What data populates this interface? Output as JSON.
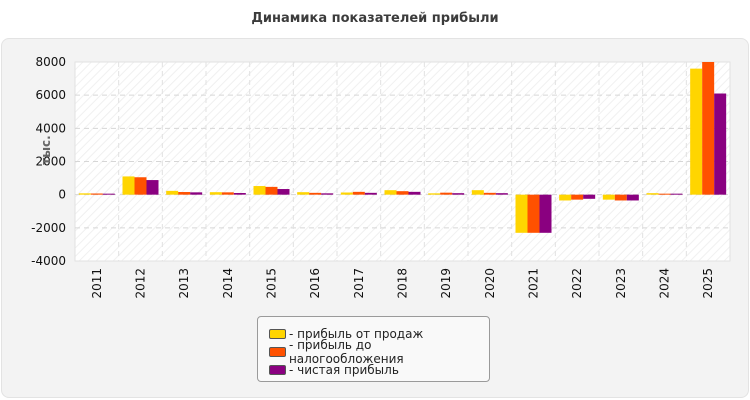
{
  "chart_data": {
    "type": "bar",
    "title": "Динамика показателей прибыли",
    "ylabel": "тыс.",
    "ylim": [
      -4000,
      8000
    ],
    "yticks": [
      8000,
      6000,
      4000,
      2000,
      0,
      -2000,
      -4000
    ],
    "categories": [
      "2011",
      "2012",
      "2013",
      "2014",
      "2015",
      "2016",
      "2017",
      "2018",
      "2019",
      "2020",
      "2021",
      "2022",
      "2023",
      "2024",
      "2025"
    ],
    "series": [
      {
        "name": "- прибыль от продаж",
        "color": "#ffd500",
        "values": [
          80,
          1100,
          230,
          150,
          520,
          150,
          130,
          270,
          80,
          270,
          -2300,
          -350,
          -300,
          90,
          7600
        ]
      },
      {
        "name": "- прибыль до налогообложения",
        "color": "#ff5100",
        "values": [
          70,
          1050,
          160,
          140,
          470,
          110,
          170,
          210,
          120,
          110,
          -2300,
          -300,
          -350,
          60,
          8000
        ]
      },
      {
        "name": "- чистая прибыль",
        "color": "#8a0080",
        "values": [
          60,
          880,
          140,
          100,
          340,
          80,
          110,
          170,
          90,
          90,
          -2300,
          -250,
          -350,
          60,
          6100
        ]
      }
    ],
    "grid": true,
    "legend_position": "bottom"
  }
}
